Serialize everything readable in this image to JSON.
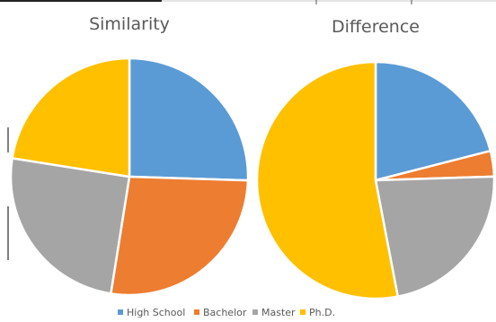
{
  "chart_data": [
    {
      "type": "pie",
      "title": "Similarity",
      "categories": [
        "High School",
        "Bachelor",
        "Master",
        "Ph.D."
      ],
      "values": [
        25.5,
        27,
        25,
        22.5
      ],
      "colors": [
        "#5B9BD5",
        "#ED7D31",
        "#A5A5A5",
        "#FFC000"
      ],
      "legend": "bottom"
    },
    {
      "type": "pie",
      "title": "Difference",
      "categories": [
        "High School",
        "Bachelor",
        "Master",
        "Ph.D."
      ],
      "values": [
        21,
        3.5,
        22.5,
        53
      ],
      "colors": [
        "#5B9BD5",
        "#ED7D31",
        "#A5A5A5",
        "#FFC000"
      ],
      "legend": "bottom"
    }
  ],
  "legend": {
    "items": [
      {
        "label": "High School",
        "color": "#5B9BD5"
      },
      {
        "label": "Bachelor",
        "color": "#ED7D31"
      },
      {
        "label": "Master",
        "color": "#A5A5A5"
      },
      {
        "label": "Ph.D.",
        "color": "#FFC000"
      }
    ]
  }
}
